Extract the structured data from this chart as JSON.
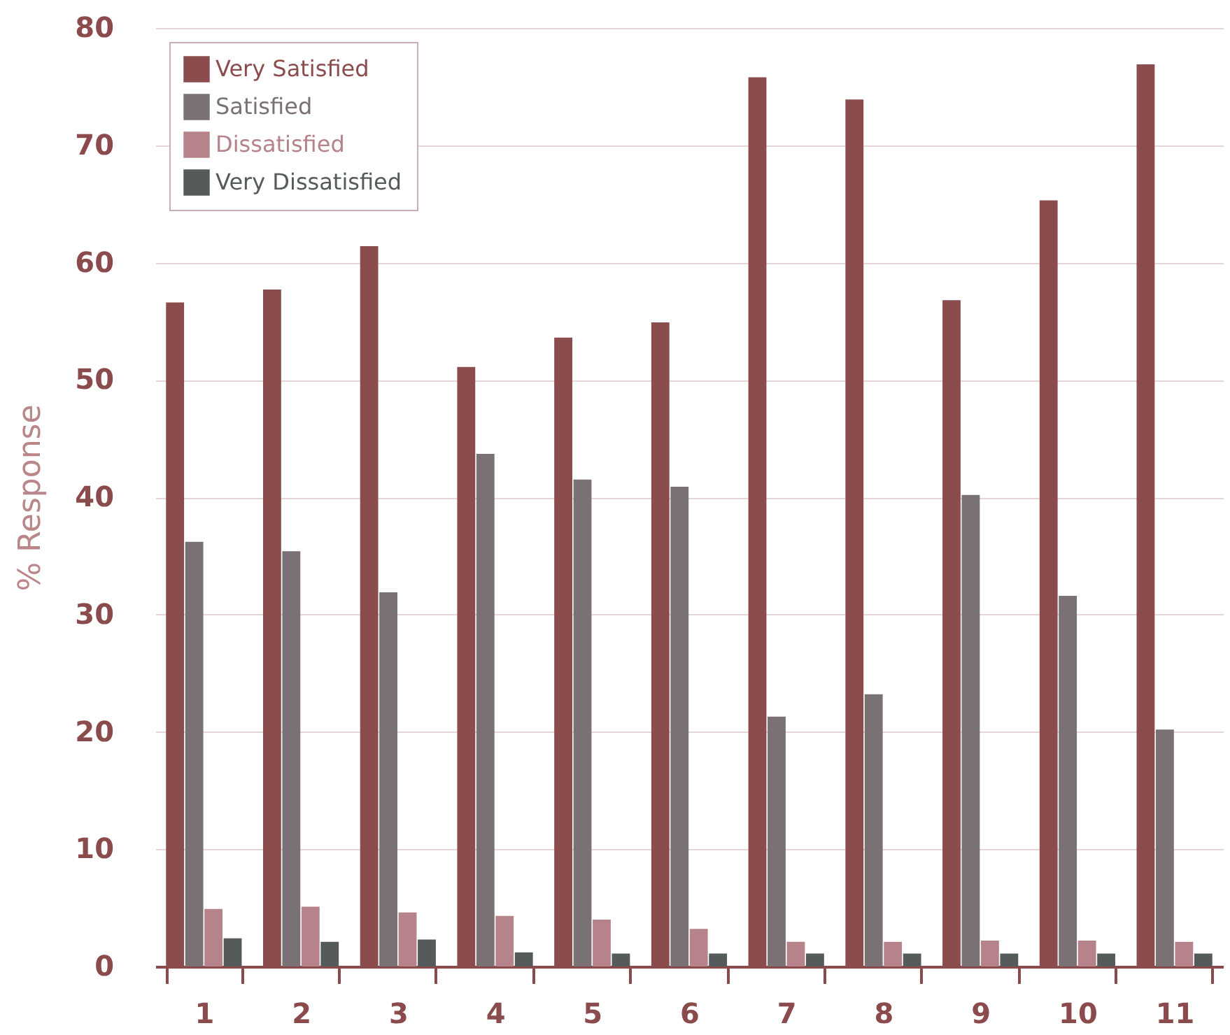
{
  "chart_data": {
    "type": "bar",
    "ylabel": "% Response",
    "categories": [
      "1",
      "2",
      "3",
      "4",
      "5",
      "6",
      "7",
      "8",
      "9",
      "10",
      "11"
    ],
    "series": [
      {
        "name": "Very Satisfied",
        "color": "#8b4c4e",
        "values": [
          56.6,
          57.7,
          61.4,
          51.1,
          53.6,
          54.9,
          75.8,
          73.9,
          56.8,
          65.3,
          76.9
        ]
      },
      {
        "name": "Satisfied",
        "color": "#7a7175",
        "values": [
          36.2,
          35.4,
          31.9,
          43.7,
          41.5,
          40.9,
          21.3,
          23.2,
          40.2,
          31.6,
          20.2
        ]
      },
      {
        "name": "Dissatisfied",
        "color": "#b58389",
        "values": [
          4.9,
          5.1,
          4.6,
          4.3,
          4.0,
          3.2,
          2.1,
          2.1,
          2.2,
          2.2,
          2.1
        ]
      },
      {
        "name": "Very Dissatisfied",
        "color": "#555a5a",
        "values": [
          2.4,
          2.1,
          2.3,
          1.2,
          1.1,
          1.1,
          1.1,
          1.1,
          1.1,
          1.1,
          1.1
        ]
      }
    ],
    "ylim": [
      0,
      80
    ],
    "yticks": [
      0,
      10,
      20,
      30,
      40,
      50,
      60,
      70,
      80
    ],
    "grid": "y",
    "legend": "top left"
  }
}
